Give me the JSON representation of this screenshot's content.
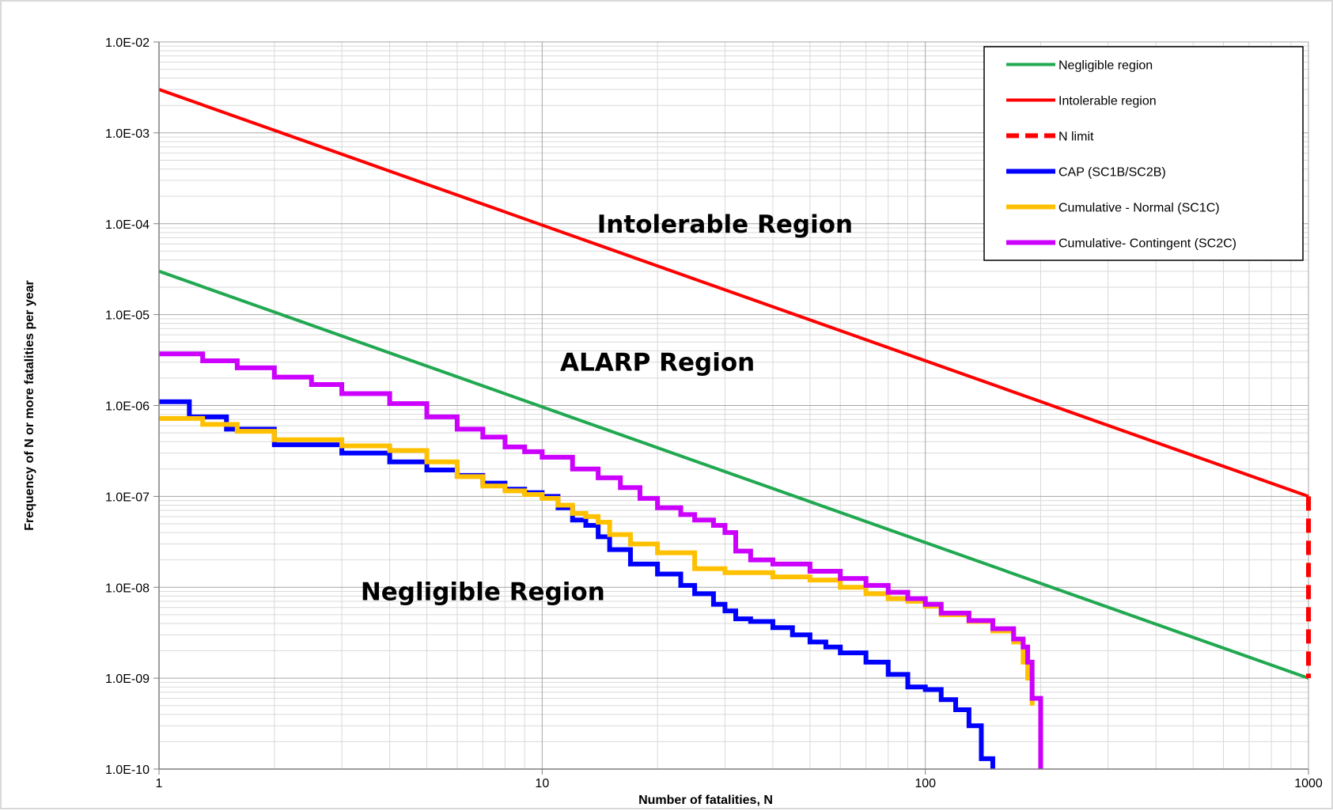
{
  "chart_data": {
    "type": "line",
    "title": "",
    "xlabel": "Number of fatalities, N",
    "ylabel": "Frequency of N or more fatalities per year",
    "x_scale": "log",
    "y_scale": "log",
    "xlim": [
      1,
      1000
    ],
    "ylim": [
      1e-10,
      0.01
    ],
    "grid": true,
    "legend_position": "top-right",
    "x_ticks": [
      1,
      10,
      100,
      1000
    ],
    "x_tick_labels": [
      "1",
      "10",
      "100",
      "1000"
    ],
    "y_ticks": [
      1e-10,
      1e-09,
      1e-08,
      1e-07,
      1e-06,
      1e-05,
      0.0001,
      0.001,
      0.01
    ],
    "y_tick_labels": [
      "1.0E-10",
      "1.0E-09",
      "1.0E-08",
      "1.0E-07",
      "1.0E-06",
      "1.0E-05",
      "1.0E-04",
      "1.0E-03",
      "1.0E-02"
    ],
    "annotations": [
      {
        "text": "Intolerable Region",
        "x": 30,
        "y": 0.0001
      },
      {
        "text": "ALARP Region",
        "x": 20,
        "y": 3e-06
      },
      {
        "text": "Negligible Region",
        "x": 7,
        "y": 9e-09
      }
    ],
    "series": [
      {
        "name": "Negligible region",
        "color": "#21a851",
        "style": "solid",
        "x": [
          1,
          1000
        ],
        "y": [
          3e-05,
          1e-09
        ]
      },
      {
        "name": "Intolerable region",
        "color": "#ff0000",
        "style": "solid",
        "x": [
          1,
          1000
        ],
        "y": [
          0.003,
          1e-07
        ]
      },
      {
        "name": "N limit",
        "color": "#ff0000",
        "style": "dashed",
        "x": [
          1000,
          1000
        ],
        "y": [
          1e-07,
          1e-09
        ]
      },
      {
        "name": "CAP (SC1B/SC2B)",
        "color": "#0000ff",
        "style": "step",
        "x": [
          1,
          1.2,
          1.5,
          2,
          3,
          4,
          5,
          6,
          7,
          8,
          9,
          10,
          11,
          12,
          13,
          14,
          15,
          17,
          20,
          23,
          25,
          28,
          30,
          32,
          35,
          40,
          45,
          50,
          55,
          60,
          70,
          80,
          90,
          100,
          110,
          120,
          130,
          140,
          150
        ],
        "y": [
          1.1e-06,
          7.5e-07,
          5.5e-07,
          3.7e-07,
          3e-07,
          2.4e-07,
          1.95e-07,
          1.7e-07,
          1.4e-07,
          1.2e-07,
          1.1e-07,
          1e-07,
          7.5e-08,
          5.5e-08,
          4.8e-08,
          3.6e-08,
          2.6e-08,
          1.8e-08,
          1.4e-08,
          1.05e-08,
          8.5e-09,
          6.5e-09,
          5.5e-09,
          4.5e-09,
          4.2e-09,
          3.6e-09,
          3e-09,
          2.5e-09,
          2.2e-09,
          1.9e-09,
          1.5e-09,
          1.1e-09,
          8e-10,
          7.5e-10,
          5.8e-10,
          4.5e-10,
          3e-10,
          1.3e-10,
          1e-10
        ]
      },
      {
        "name": "Cumulative - Normal (SC1C)",
        "color": "#ffc000",
        "style": "step",
        "x": [
          1,
          1.3,
          1.6,
          2,
          3,
          4,
          5,
          6,
          7,
          8,
          9,
          10,
          11,
          12,
          13,
          14,
          15,
          17,
          20,
          25,
          30,
          40,
          50,
          60,
          70,
          80,
          90,
          100,
          110,
          130,
          150,
          170,
          180,
          185,
          190
        ],
        "y": [
          7.2e-07,
          6.2e-07,
          5.2e-07,
          4.2e-07,
          3.6e-07,
          3.2e-07,
          2.4e-07,
          1.65e-07,
          1.3e-07,
          1.15e-07,
          1.05e-07,
          9.5e-08,
          8e-08,
          6.5e-08,
          6e-08,
          5.2e-08,
          3.8e-08,
          3e-08,
          2.4e-08,
          1.6e-08,
          1.45e-08,
          1.3e-08,
          1.2e-08,
          1e-08,
          8.5e-09,
          7.5e-09,
          7e-09,
          6.2e-09,
          5e-09,
          4.2e-09,
          3.3e-09,
          2.5e-09,
          1.5e-09,
          1e-09,
          5e-10
        ]
      },
      {
        "name": "Cumulative- Contingent (SC2C)",
        "color": "#cc00ff",
        "style": "step",
        "x": [
          1,
          1.3,
          1.6,
          2,
          2.5,
          3,
          4,
          5,
          6,
          7,
          8,
          9,
          10,
          12,
          14,
          16,
          18,
          20,
          23,
          25,
          28,
          30,
          32,
          35,
          40,
          50,
          60,
          70,
          80,
          90,
          100,
          110,
          130,
          150,
          170,
          180,
          185,
          190,
          200
        ],
        "y": [
          3.7e-06,
          3.1e-06,
          2.6e-06,
          2.05e-06,
          1.7e-06,
          1.35e-06,
          1.05e-06,
          7.5e-07,
          5.5e-07,
          4.5e-07,
          3.5e-07,
          3.1e-07,
          2.7e-07,
          2e-07,
          1.6e-07,
          1.25e-07,
          9.5e-08,
          7.5e-08,
          6.3e-08,
          5.5e-08,
          4.8e-08,
          4e-08,
          2.5e-08,
          2e-08,
          1.8e-08,
          1.5e-08,
          1.25e-08,
          1.05e-08,
          8.8e-09,
          7.5e-09,
          6.5e-09,
          5.2e-09,
          4.3e-09,
          3.5e-09,
          2.7e-09,
          2.2e-09,
          1.5e-09,
          6e-10,
          1e-10
        ]
      }
    ]
  }
}
